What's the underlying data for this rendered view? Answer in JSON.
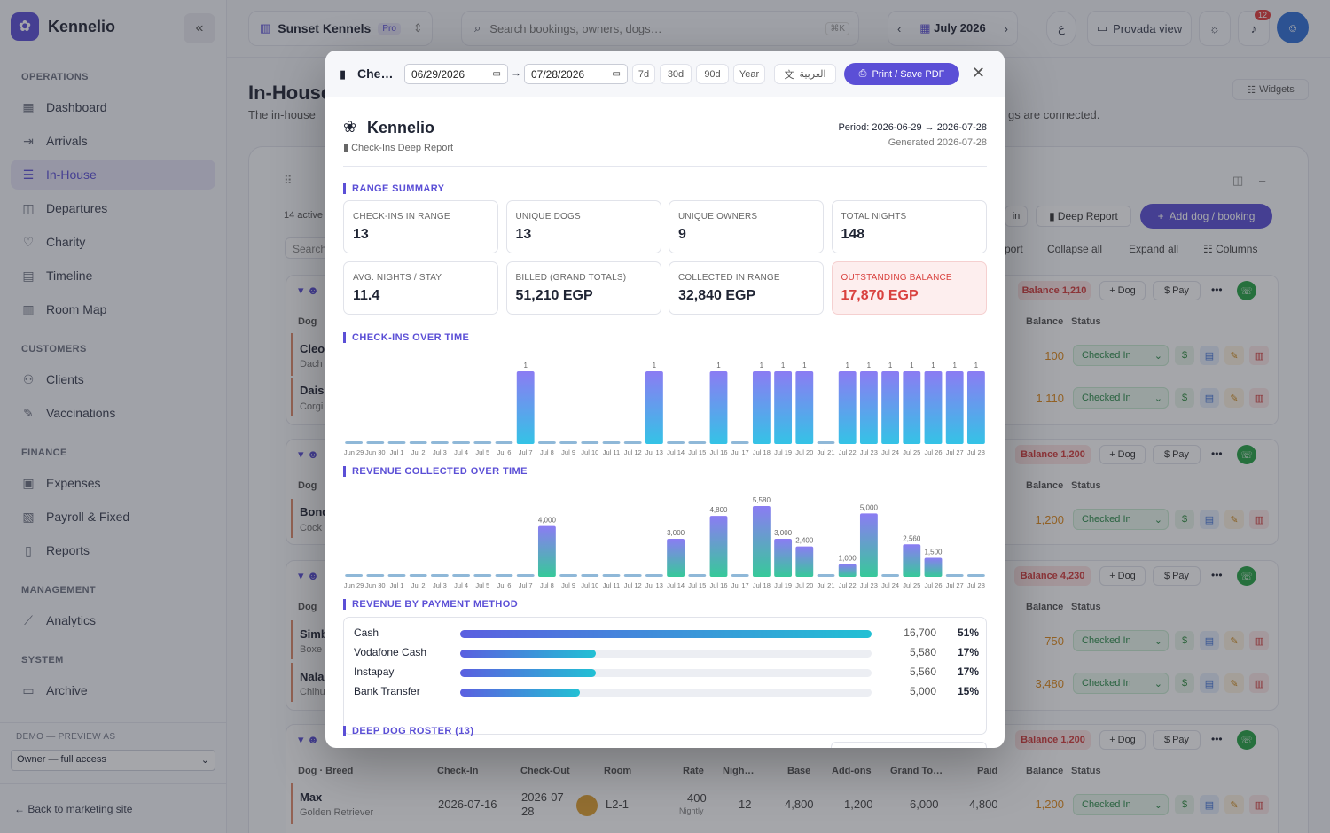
{
  "app": {
    "name": "Kennelio",
    "collapse_icon": "«"
  },
  "sidebar": {
    "sections": [
      {
        "title": "OPERATIONS"
      },
      {
        "title": "CUSTOMERS"
      },
      {
        "title": "FINANCE"
      },
      {
        "title": "MANAGEMENT"
      },
      {
        "title": "SYSTEM"
      }
    ],
    "items": [
      {
        "label": "Dashboard",
        "icon": "grid-icon"
      },
      {
        "label": "Arrivals",
        "icon": "arrow-in-icon"
      },
      {
        "label": "In-House",
        "icon": "list-icon",
        "active": true
      },
      {
        "label": "Departures",
        "icon": "box-icon"
      },
      {
        "label": "Charity",
        "icon": "heart-icon"
      },
      {
        "label": "Timeline",
        "icon": "calendar-icon"
      },
      {
        "label": "Room Map",
        "icon": "building-icon"
      },
      {
        "label": "Clients",
        "icon": "users-icon"
      },
      {
        "label": "Vaccinations",
        "icon": "syringe-icon"
      },
      {
        "label": "Expenses",
        "icon": "wallet-icon"
      },
      {
        "label": "Payroll & Fixed",
        "icon": "payroll-icon"
      },
      {
        "label": "Reports",
        "icon": "document-icon"
      },
      {
        "label": "Analytics",
        "icon": "chart-line-icon"
      },
      {
        "label": "Archive",
        "icon": "archive-icon"
      }
    ],
    "demo_label": "DEMO — PREVIEW AS",
    "demo_value": "Owner — full access",
    "back_link": "← Back to marketing site"
  },
  "topbar": {
    "workspace": "Sunset Kennels",
    "workspace_badge": "Pro",
    "search_placeholder": "Search bookings, owners, dogs…",
    "search_shortcut": "⌘K",
    "month": "July 2026",
    "lang_toggle": "ع",
    "view_button": "Provada view",
    "notif_count": "12"
  },
  "background": {
    "title": "In-House",
    "subtitle": "The in-house",
    "subtitle_end": "gs are connected.",
    "widgets": "Widgets",
    "active_count": "14 active",
    "search_placeholder": "Search",
    "deep_report": "Deep Report",
    "add_booking": "Add dog / booking",
    "in_btn": "in",
    "port": "port",
    "collapse_all": "Collapse all",
    "expand_all": "Expand all",
    "columns": "Columns",
    "dog_col": "Dog",
    "balance_col": "Balance",
    "status_col": "Status",
    "status_value": "Checked In",
    "dog_btn": "Dog",
    "pay_btn": "Pay",
    "groups": [
      {
        "balance": "Balance 1,210"
      },
      {
        "balance": "Balance 1,200"
      },
      {
        "balance": "Balance 4,230"
      },
      {
        "balance": "Balance 1,200"
      }
    ],
    "rows": [
      {
        "name": "Cleo",
        "breed": "Dach",
        "balance": "100"
      },
      {
        "name": "Dais",
        "breed": "Corgi",
        "balance": "1,110"
      },
      {
        "name": "Bond",
        "breed": "Cock",
        "balance": "1,200"
      },
      {
        "name": "Simb",
        "breed": "Boxe",
        "balance": "750"
      },
      {
        "name": "Nala",
        "breed": "Chihu",
        "balance": "3,480"
      }
    ],
    "table_headers": [
      "Dog · Breed",
      "Check-In",
      "Check-Out",
      "Room",
      "Rate",
      "Nigh…",
      "Base",
      "Add-ons",
      "Grand To…",
      "Paid",
      "Balance",
      "Status"
    ],
    "last_row": {
      "name": "Max",
      "breed": "Golden Retriever",
      "check_in": "2026-07-16",
      "check_out": "2026-07-28",
      "check_out_a": "2026-07-",
      "check_out_b": "28",
      "room": "L2-1",
      "rate": "400",
      "rate_unit": "Nightly",
      "nights": "12",
      "base": "4,800",
      "addons": "1,200",
      "grand": "6,000",
      "paid": "4,800",
      "balance": "1,200"
    }
  },
  "modal": {
    "title": "Che…",
    "date_from": "06/29/2026",
    "date_to": "07/28/2026",
    "arrow": "→",
    "ranges": [
      "7d",
      "30d",
      "90d",
      "Year"
    ],
    "arabic": "العربية",
    "print": "Print / Save PDF",
    "report": {
      "brand": "Kennelio",
      "subtitle": "Check-Ins Deep Report",
      "period": "Period: 2026-06-29 → 2026-07-28",
      "generated": "Generated 2026-07-28"
    },
    "range_summary_title": "RANGE SUMMARY",
    "stats": [
      {
        "label": "CHECK-INS IN RANGE",
        "value": "13"
      },
      {
        "label": "UNIQUE DOGS",
        "value": "13"
      },
      {
        "label": "UNIQUE OWNERS",
        "value": "9"
      },
      {
        "label": "TOTAL NIGHTS",
        "value": "148"
      },
      {
        "label": "AVG. NIGHTS / STAY",
        "value": "11.4"
      },
      {
        "label": "BILLED (GRAND TOTALS)",
        "value": "51,210 EGP"
      },
      {
        "label": "COLLECTED IN RANGE",
        "value": "32,840 EGP"
      },
      {
        "label": "OUTSTANDING BALANCE",
        "value": "17,870 EGP",
        "warn": true
      }
    ],
    "checkins_title": "CHECK-INS OVER TIME",
    "revenue_title": "REVENUE COLLECTED OVER TIME",
    "payment_title": "REVENUE BY PAYMENT METHOD",
    "payments": [
      {
        "method": "Cash",
        "amount": "16,700",
        "pct": "51%",
        "share": 1.0
      },
      {
        "method": "Vodafone Cash",
        "amount": "5,580",
        "pct": "17%",
        "share": 0.33
      },
      {
        "method": "Instapay",
        "amount": "5,560",
        "pct": "17%",
        "share": 0.33
      },
      {
        "method": "Bank Transfer",
        "amount": "5,000",
        "pct": "15%",
        "share": 0.29
      }
    ],
    "roster_title": "DEEP DOG ROSTER (13)"
  },
  "chart_data": [
    {
      "type": "bar",
      "title": "CHECK-INS OVER TIME",
      "categories": [
        "Jun 29",
        "Jun 30",
        "Jul 1",
        "Jul 2",
        "Jul 3",
        "Jul 4",
        "Jul 5",
        "Jul 6",
        "Jul 7",
        "Jul 8",
        "Jul 9",
        "Jul 10",
        "Jul 11",
        "Jul 12",
        "Jul 13",
        "Jul 14",
        "Jul 15",
        "Jul 16",
        "Jul 17",
        "Jul 18",
        "Jul 19",
        "Jul 20",
        "Jul 21",
        "Jul 22",
        "Jul 23",
        "Jul 24",
        "Jul 25",
        "Jul 26",
        "Jul 27",
        "Jul 28"
      ],
      "values": [
        0,
        0,
        0,
        0,
        0,
        0,
        0,
        0,
        1,
        0,
        0,
        0,
        0,
        0,
        1,
        0,
        0,
        1,
        0,
        1,
        1,
        1,
        0,
        1,
        1,
        1,
        1,
        1,
        1,
        1
      ],
      "colors": {
        "top": "#8b7cf3",
        "bottom": "#34c3e6"
      }
    },
    {
      "type": "bar",
      "title": "REVENUE COLLECTED OVER TIME",
      "categories": [
        "Jun 29",
        "Jun 30",
        "Jul 1",
        "Jul 2",
        "Jul 3",
        "Jul 4",
        "Jul 5",
        "Jul 6",
        "Jul 7",
        "Jul 8",
        "Jul 9",
        "Jul 10",
        "Jul 11",
        "Jul 12",
        "Jul 13",
        "Jul 14",
        "Jul 15",
        "Jul 16",
        "Jul 17",
        "Jul 18",
        "Jul 19",
        "Jul 20",
        "Jul 21",
        "Jul 22",
        "Jul 23",
        "Jul 24",
        "Jul 25",
        "Jul 26",
        "Jul 27",
        "Jul 28"
      ],
      "values": [
        0,
        0,
        0,
        0,
        0,
        0,
        0,
        0,
        0,
        4000,
        0,
        0,
        0,
        0,
        0,
        3000,
        0,
        4800,
        0,
        5580,
        3000,
        2400,
        0,
        1000,
        5000,
        0,
        2560,
        1500,
        0,
        0
      ],
      "labels": [
        "",
        "",
        "",
        "",
        "",
        "",
        "",
        "",
        "",
        "4,000",
        "",
        "",
        "",
        "",
        "",
        "3,000",
        "",
        "4,800",
        "",
        "5,580",
        "3,000",
        "2,400",
        "",
        "1,000",
        "5,000",
        "",
        "2,560",
        "1,500",
        "",
        ""
      ],
      "colors": {
        "top": "#8b7cf3",
        "bottom": "#37c99a"
      }
    }
  ]
}
